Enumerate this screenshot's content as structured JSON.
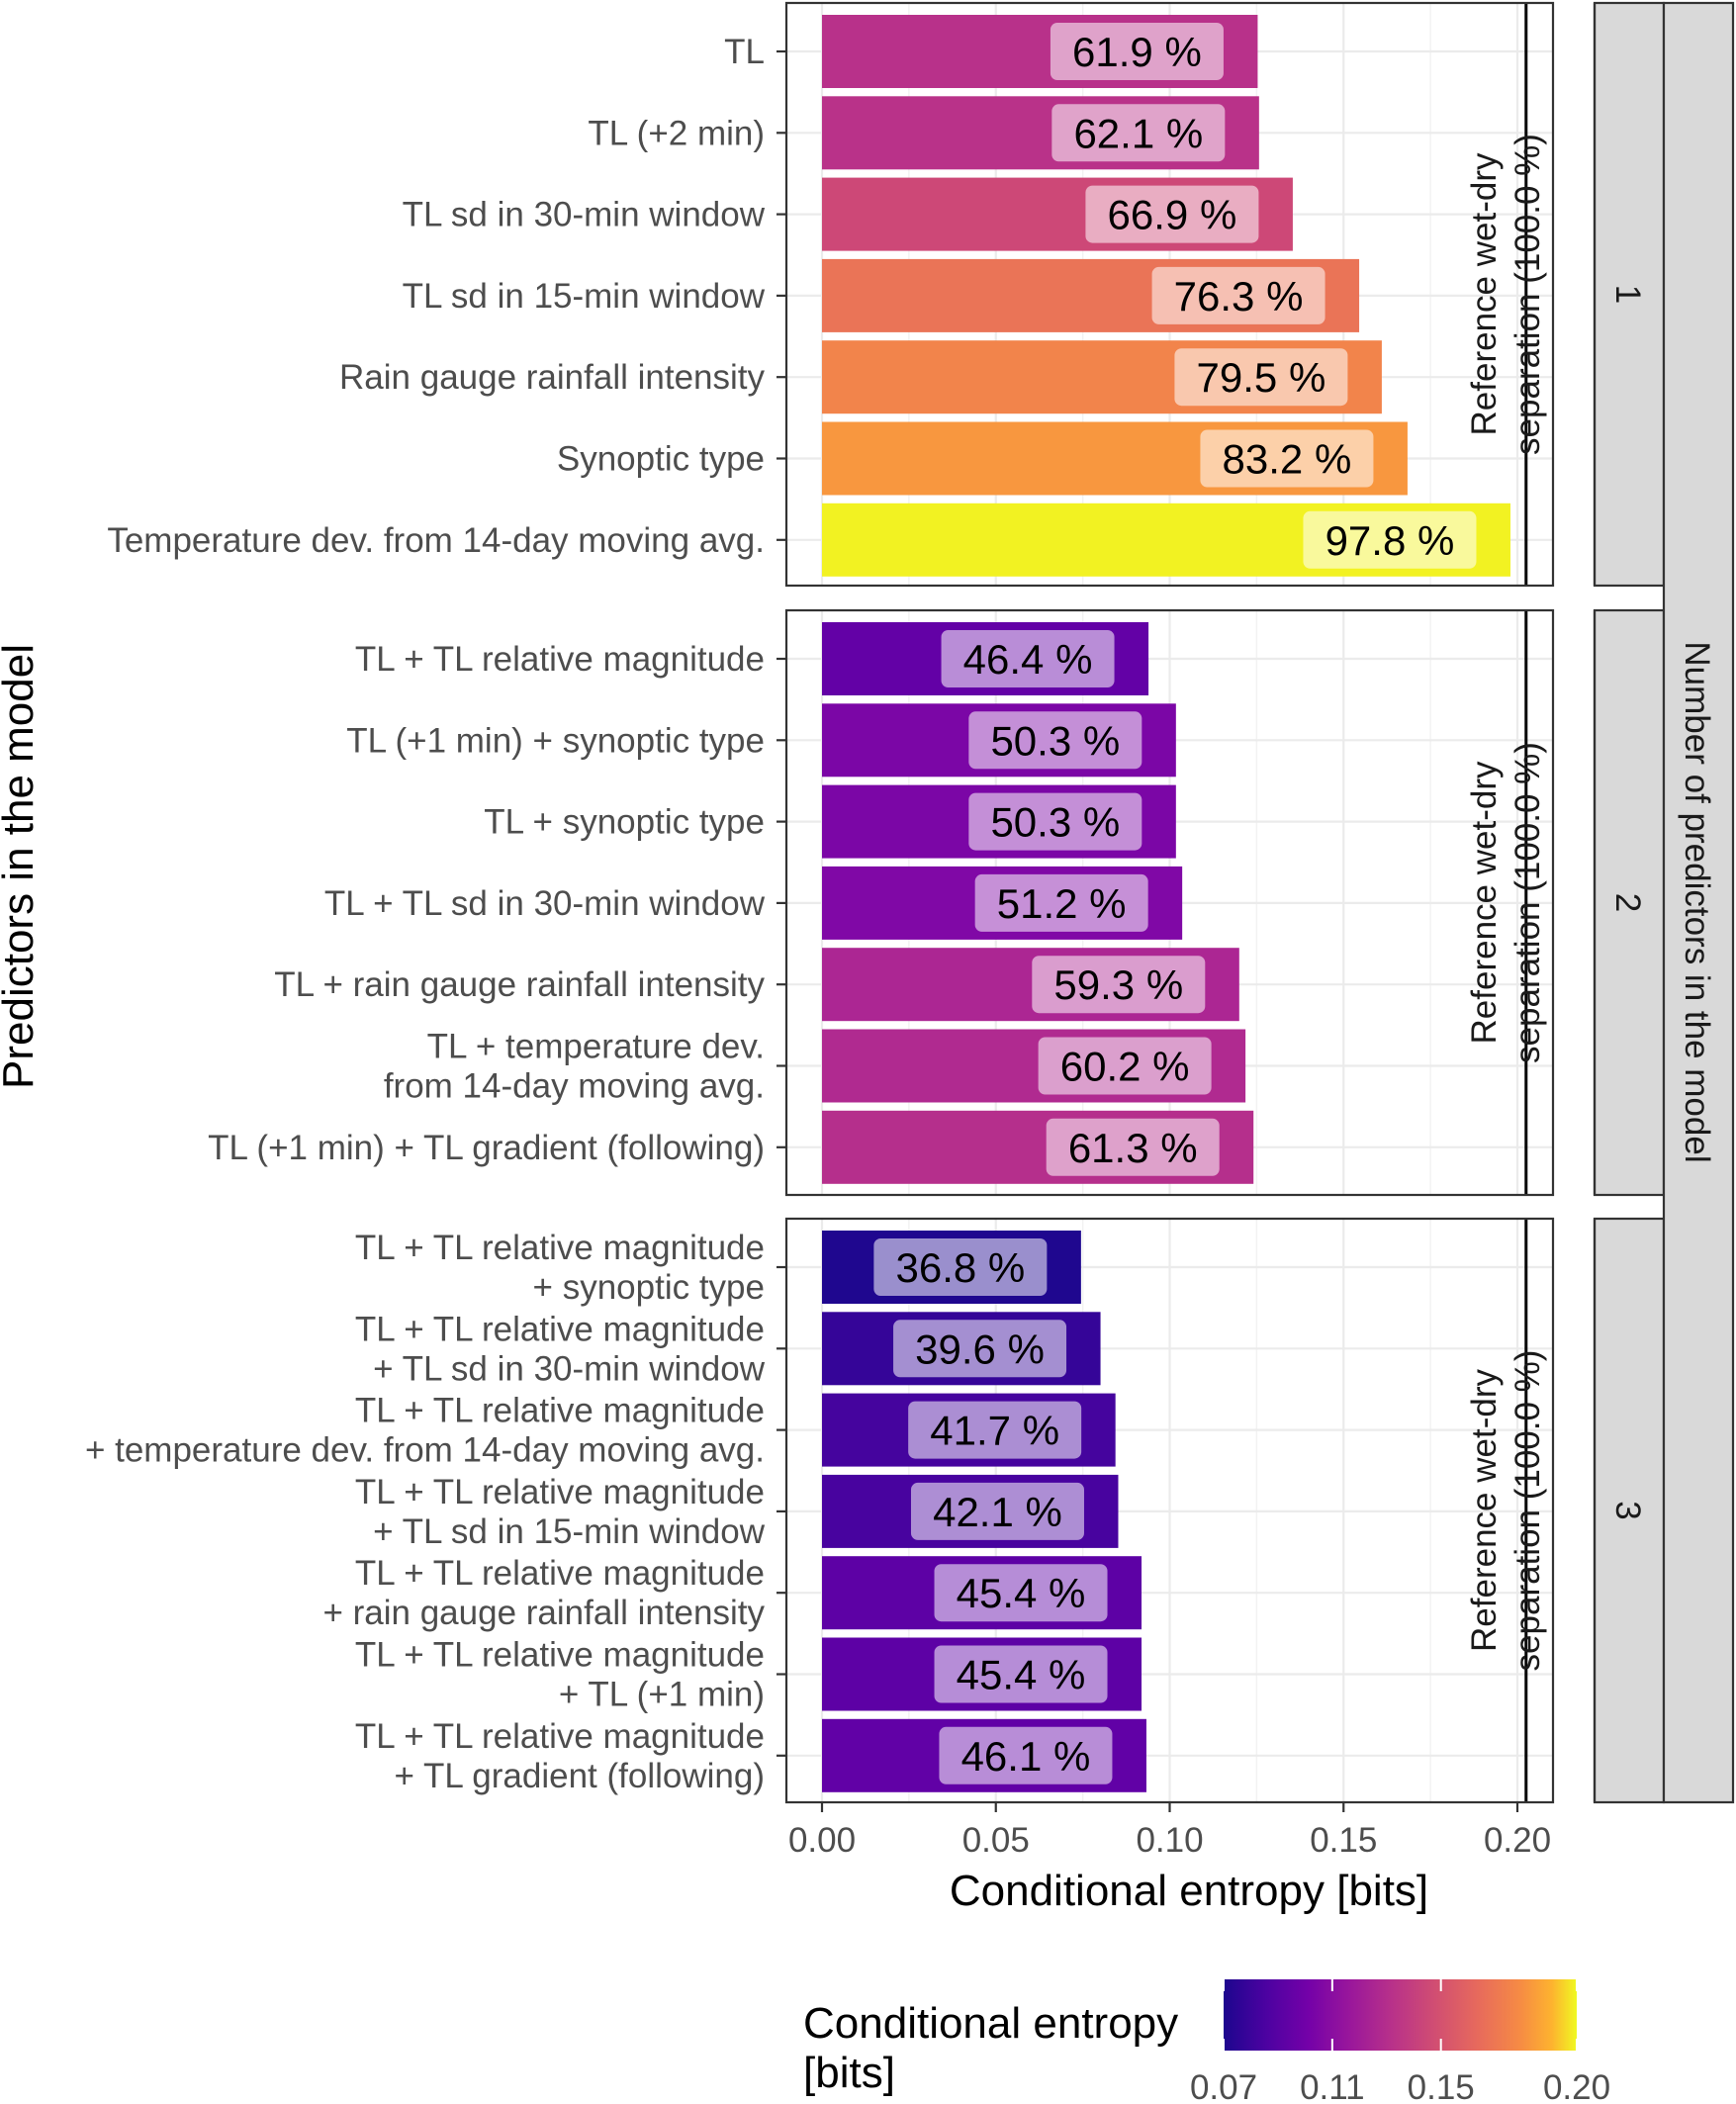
{
  "chart_data": {
    "type": "bar",
    "orientation": "horizontal",
    "xlabel": "Conditional entropy [bits]",
    "ylabel": "Predictors in the model",
    "xlim": [
      0,
      0.2
    ],
    "x_ticks": [
      "0.00",
      "0.05",
      "0.10",
      "0.15",
      "0.20"
    ],
    "x_tick_values": [
      0,
      0.05,
      0.1,
      0.15,
      0.2
    ],
    "grid": true,
    "facet_title": "Number of predictors in the model",
    "reference_label": "Reference wet-dry separation (100.0 %)",
    "reference_label_lines": [
      "Reference wet-dry",
      "separation (100.0 %)"
    ],
    "reference_value": 0.2025,
    "legend": {
      "title_lines": [
        "Conditional entropy",
        "[bits]"
      ],
      "ticks": [
        "0.07",
        "0.11",
        "0.15",
        "0.20"
      ],
      "tick_values": [
        0.07,
        0.11,
        0.15,
        0.2
      ],
      "range": [
        0.07,
        0.2
      ],
      "colormap": "plasma",
      "placement": "bottom"
    },
    "panels": [
      {
        "facet": "1",
        "bars": [
          {
            "label": [
              "TL"
            ],
            "value": 0.1253,
            "pct": "61.9 %"
          },
          {
            "label": [
              "TL (+2 min)"
            ],
            "value": 0.1257,
            "pct": "62.1 %"
          },
          {
            "label": [
              "TL sd in 30-min window"
            ],
            "value": 0.1354,
            "pct": "66.9 %"
          },
          {
            "label": [
              "TL sd in 15-min window"
            ],
            "value": 0.1545,
            "pct": "76.3 %"
          },
          {
            "label": [
              "Rain gauge rainfall intensity"
            ],
            "value": 0.161,
            "pct": "79.5 %"
          },
          {
            "label": [
              "Synoptic type"
            ],
            "value": 0.1684,
            "pct": "83.2 %"
          },
          {
            "label": [
              "Temperature dev. from 14-day moving avg."
            ],
            "value": 0.198,
            "pct": "97.8 %"
          }
        ]
      },
      {
        "facet": "2",
        "bars": [
          {
            "label": [
              "TL + TL relative magnitude"
            ],
            "value": 0.0939,
            "pct": "46.4 %"
          },
          {
            "label": [
              "TL (+1 min) + synoptic type"
            ],
            "value": 0.1018,
            "pct": "50.3 %"
          },
          {
            "label": [
              "TL + synoptic type"
            ],
            "value": 0.1018,
            "pct": "50.3 %"
          },
          {
            "label": [
              "TL + TL sd in 30-min window"
            ],
            "value": 0.1036,
            "pct": "51.2 %"
          },
          {
            "label": [
              "TL + rain gauge rainfall intensity"
            ],
            "value": 0.12,
            "pct": "59.3 %"
          },
          {
            "label": [
              "TL + temperature dev.",
              "from 14-day moving avg."
            ],
            "value": 0.1218,
            "pct": "60.2 %"
          },
          {
            "label": [
              "TL (+1 min) + TL gradient (following)"
            ],
            "value": 0.1241,
            "pct": "61.3 %"
          }
        ]
      },
      {
        "facet": "3",
        "bars": [
          {
            "label": [
              "TL + TL relative magnitude",
              "+ synoptic type"
            ],
            "value": 0.0745,
            "pct": "36.8 %"
          },
          {
            "label": [
              "TL + TL relative magnitude",
              "+ TL sd in 30-min window"
            ],
            "value": 0.0801,
            "pct": "39.6 %"
          },
          {
            "label": [
              "TL + TL relative magnitude",
              "+ temperature dev. from 14-day moving avg."
            ],
            "value": 0.0844,
            "pct": "41.7 %"
          },
          {
            "label": [
              "TL + TL relative magnitude",
              "+ TL sd in 15-min window"
            ],
            "value": 0.0852,
            "pct": "42.1 %"
          },
          {
            "label": [
              "TL + TL relative magnitude",
              "+ rain gauge rainfall intensity"
            ],
            "value": 0.0919,
            "pct": "45.4 %"
          },
          {
            "label": [
              "TL + TL relative magnitude",
              "+ TL (+1 min)"
            ],
            "value": 0.0919,
            "pct": "45.4 %"
          },
          {
            "label": [
              "TL + TL relative magnitude",
              "+ TL gradient (following)"
            ],
            "value": 0.0933,
            "pct": "46.1 %"
          }
        ]
      }
    ]
  }
}
